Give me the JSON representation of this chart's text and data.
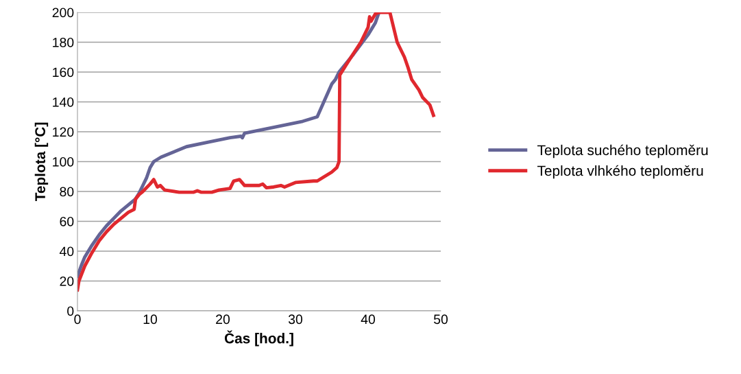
{
  "chart_data": {
    "type": "line",
    "xlabel": "Čas [hod.]",
    "ylabel": "Teplota [°C]",
    "xlim": [
      0,
      50
    ],
    "xticks": [
      0,
      10,
      20,
      30,
      40,
      50
    ],
    "ylim": [
      0,
      200
    ],
    "yticks": [
      0,
      20,
      40,
      60,
      80,
      100,
      120,
      140,
      160,
      180,
      200
    ],
    "grid": "y",
    "legend": "right",
    "marker": "none",
    "line_style": "solid",
    "series": [
      {
        "name": "Teplota suchého teploměru",
        "color": "#646496",
        "x": [
          0,
          0.5,
          1,
          2,
          3,
          4,
          5,
          6,
          7,
          8,
          8.5,
          9,
          9.5,
          10,
          10.5,
          11.5,
          13,
          15,
          18,
          21,
          22.5,
          22.7,
          23,
          25,
          28,
          31,
          33,
          34,
          35,
          35.5,
          36,
          38,
          40,
          41,
          41.5
        ],
        "values": [
          23,
          30,
          36,
          44,
          51,
          57,
          62,
          67,
          71,
          75,
          79,
          84,
          89,
          96,
          100,
          103,
          106,
          110,
          113,
          116,
          117,
          116,
          119,
          121,
          124,
          127,
          130,
          141,
          152,
          155,
          160,
          172,
          185,
          193,
          200
        ]
      },
      {
        "name": "Teplota vlhkého teploměru",
        "color": "#e0282e",
        "x": [
          0,
          0.2,
          1,
          2,
          3,
          4,
          5,
          6,
          7,
          7.8,
          8,
          8.5,
          9,
          10,
          10.5,
          11,
          11.4,
          12,
          14,
          16,
          16.5,
          17,
          18.5,
          19.5,
          21,
          21.5,
          22.3,
          23,
          25,
          25.5,
          26,
          27,
          28,
          28.5,
          30,
          32.5,
          33,
          35,
          35.7,
          36,
          36.1,
          37,
          39,
          40,
          40.2,
          40.4,
          41,
          41.5,
          43,
          43.5,
          44,
          45,
          45.5,
          46,
          47,
          47.5,
          48.5,
          49
        ],
        "values": [
          14,
          20,
          30,
          39,
          47,
          53,
          58,
          62,
          66,
          68,
          75,
          78,
          80,
          85,
          88,
          83,
          84,
          81,
          79.5,
          79.5,
          80.5,
          79.5,
          79.5,
          81,
          82,
          87,
          88,
          84,
          84,
          85,
          82.5,
          83,
          84,
          83,
          86,
          87,
          87,
          93,
          96,
          100,
          158,
          165,
          180,
          190,
          197,
          194,
          199,
          200,
          200,
          190,
          180,
          170,
          163,
          155,
          148,
          143,
          138,
          131
        ]
      }
    ]
  }
}
